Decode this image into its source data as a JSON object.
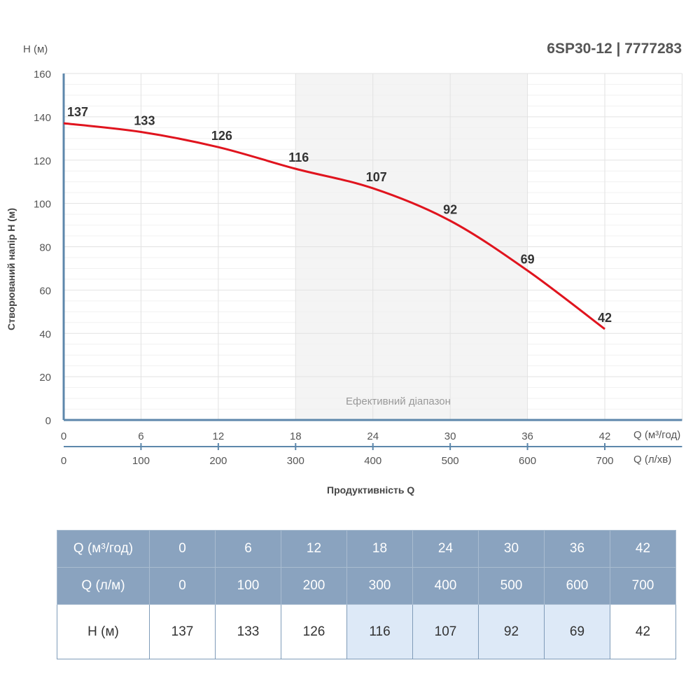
{
  "title": "6SP30-12 | 7777283",
  "chart_data": {
    "type": "line",
    "title": "6SP30-12 | 7777283",
    "ylabel": "Створюваний напір H (м)",
    "ylabel_top": "H (м)",
    "xlabel": "Продуктивність Q",
    "x_unit_primary": "Q (м³/год)",
    "x_unit_secondary": "Q (л/хв)",
    "x": [
      0,
      6,
      12,
      18,
      24,
      30,
      36,
      42
    ],
    "x_secondary_ticks": [
      0,
      100,
      200,
      300,
      400,
      500,
      600,
      700
    ],
    "y_ticks": [
      0,
      20,
      40,
      60,
      80,
      100,
      120,
      140,
      160
    ],
    "ylim": [
      0,
      160
    ],
    "xlim": [
      0,
      48
    ],
    "series": [
      {
        "values": [
          137,
          133,
          126,
          116,
          107,
          92,
          69,
          42
        ],
        "color": "#e0141e"
      }
    ],
    "efficient_range": {
      "label": "Ефективний діапазон",
      "from": 18,
      "to": 36
    },
    "grid": true
  },
  "table": {
    "rows": [
      {
        "label": "Q (м³/год)",
        "values": [
          "0",
          "6",
          "12",
          "18",
          "24",
          "30",
          "36",
          "42"
        ]
      },
      {
        "label": "Q (л/м)",
        "values": [
          "0",
          "100",
          "200",
          "300",
          "400",
          "500",
          "600",
          "700"
        ]
      },
      {
        "label": "H (м)",
        "values": [
          "137",
          "133",
          "126",
          "116",
          "107",
          "92",
          "69",
          "42"
        ],
        "highlighted": [
          3,
          4,
          5,
          6
        ]
      }
    ]
  },
  "colors": {
    "curve": "#e0141e",
    "axis": "#5d87ab",
    "header": "#8aa3bf",
    "highlight": "#dde9f7",
    "range": "#f4f4f4"
  }
}
